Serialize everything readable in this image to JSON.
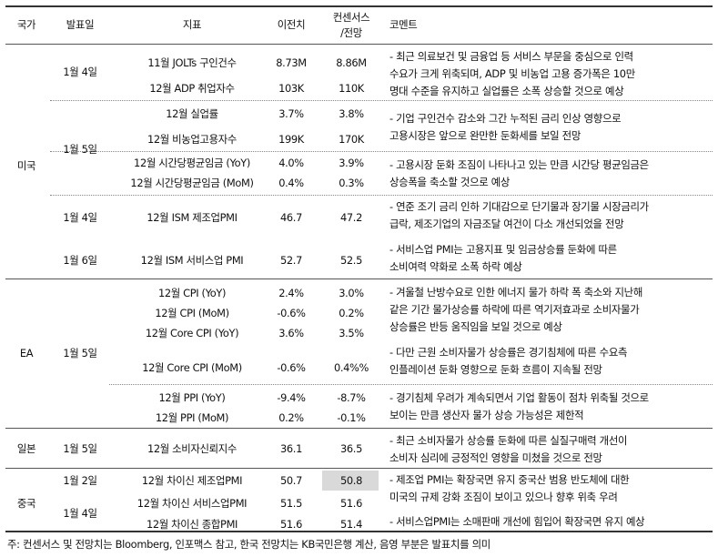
{
  "header": {
    "country": "국가",
    "date": "발표일",
    "indicator": "지표",
    "previous": "이전치",
    "consensus_line1": "컨센서스",
    "consensus_line2": "/전망",
    "comment": "코멘트"
  },
  "countries": [
    "미국",
    "EA",
    "일본",
    "중국"
  ],
  "dates": [
    "1월 4일",
    "1월 5일",
    "1월 4일",
    "1월 6일",
    "1월 5일",
    "1월 5일",
    "1월 2일",
    "1월 4일"
  ],
  "rows": [
    {
      "indicator": "11월 JOLTs 구인건수",
      "previous": "8.73M",
      "consensus": "8.86M"
    },
    {
      "indicator": "12월 ADP 취업자수",
      "previous": "103K",
      "consensus": "110K"
    },
    {
      "indicator": "12월 실업률",
      "previous": "3.7%",
      "consensus": "3.8%"
    },
    {
      "indicator": "12월 비농업고용자수",
      "previous": "199K",
      "consensus": "170K"
    },
    {
      "indicator": "12월 시간당평균임금 (YoY)",
      "previous": "4.0%",
      "consensus": "3.9%"
    },
    {
      "indicator": "12월 시간당평균임금 (MoM)",
      "previous": "0.4%",
      "consensus": "0.3%"
    },
    {
      "indicator": "12월 ISM 제조업PMI",
      "previous": "46.7",
      "consensus": "47.2"
    },
    {
      "indicator": "12월 ISM 서비스업 PMI",
      "previous": "52.7",
      "consensus": "52.5"
    },
    {
      "indicator": "12월 CPI (YoY)",
      "previous": "2.4%",
      "consensus": "3.0%"
    },
    {
      "indicator": "12월 CPI (MoM)",
      "previous": "-0.6%",
      "consensus": "0.2%"
    },
    {
      "indicator": "12월 Core CPI (YoY)",
      "previous": "3.6%",
      "consensus": "3.5%"
    },
    {
      "indicator": "12월 Core CPI (MoM)",
      "previous": "-0.6%",
      "consensus": "0.4%%"
    },
    {
      "indicator": "12월 PPI (YoY)",
      "previous": "-9.4%",
      "consensus": "-8.7%"
    },
    {
      "indicator": "12월 PPI (MoM)",
      "previous": "0.2%",
      "consensus": "-0.1%"
    },
    {
      "indicator": "12월 소비자신뢰지수",
      "previous": "36.1",
      "consensus": "36.5"
    },
    {
      "indicator": "12월 차이신 제조업PMI",
      "previous": "50.7",
      "consensus": "50.8"
    },
    {
      "indicator": "12월 차이신 서비스업PMI",
      "previous": "51.5",
      "consensus": "51.6"
    },
    {
      "indicator": "12월 차이신 종합PMI",
      "previous": "51.6",
      "consensus": "51.4"
    }
  ],
  "comments": [
    [
      "- 최근 의료보건 및 금융업 등 서비스 부문을 중심으로 인력",
      "수요가 크게 위축되며, ADP 및 비농업 고용 증가폭은 10만",
      "명대 수준을 유지하고 실업률은 소폭 상승할 것으로 예상"
    ],
    [
      "- 기업 구인건수 감소와 그간 누적된 금리 인상 영향으로",
      "고용시장은 앞으로 완만한 둔화세를 보일 전망"
    ],
    [
      "- 고용시장 둔화 조짐이 나타나고 있는 만큼 시간당 평균임금은",
      "상승폭을 축소할 것으로 예상"
    ],
    [
      "- 연준 조기 금리 인하 기대감으로 단기물과 장기물 시장금리가",
      "급락, 제조기업의 자금조달 여건이 다소 개선되었을 전망"
    ],
    [
      "- 서비스업 PMI는 고용지표 및 임금상승률 둔화에 따른",
      "소비여력 약화로 소폭 하락 예상"
    ],
    [
      "- 겨울철 난방수요로 인한 에너지 물가 하락 폭 축소와 지난해",
      "같은 기간 물가상승률 하락에 따른 역기저효과로 소비자물가",
      "상승률은 반등 움직임을 보일 것으로 예상"
    ],
    [
      "- 다만 근원 소비자물가 상승률은 경기침체에 따른 수요측",
      "인플레이션 둔화 영향으로 둔화 흐름이 지속될 전망"
    ],
    [
      "- 경기침체 우려가 계속되면서 기업 활동이 점차 위축될 것으로",
      "보이는 만큼 생산자 물가 상승 가능성은 제한적"
    ],
    [
      "- 최근 소비자물가 상승률 둔화에 따른 실질구매력 개선이",
      "소비자 심리에 긍정적인 영향을 미쳤을 것으로 전망"
    ],
    [
      "- 제조업 PMI는 확장국면 유지 중국산 범용 반도체에 대한",
      "미국의 규제 강화 조짐이 보이고 있으나 향후 위축 우려"
    ],
    [
      "- 서비스업PMI는 소매판매 개선에 힘입어 확장국면 유지 예상"
    ]
  ],
  "footnote": "주: 컨센서스 및 전망치는 Bloomberg, 인포맥스 참고, 한국 전망치는 KB국민은행 계산, 음영 부분은 발표치를 의미"
}
